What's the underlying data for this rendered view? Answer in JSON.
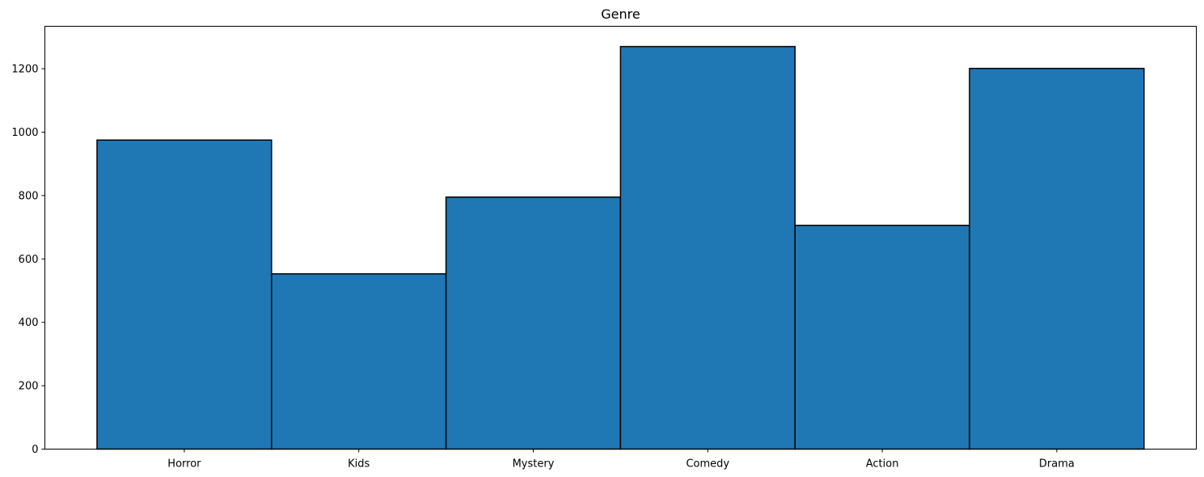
{
  "chart_data": {
    "type": "bar",
    "title": "Genre",
    "xlabel": "",
    "ylabel": "",
    "categories": [
      "Horror",
      "Kids",
      "Mystery",
      "Comedy",
      "Action",
      "Drama"
    ],
    "values": [
      975,
      553,
      795,
      1270,
      706,
      1201
    ],
    "ylim": [
      0,
      1334
    ],
    "yticks": [
      0,
      200,
      400,
      600,
      800,
      1000,
      1200
    ],
    "grid": false,
    "legend": "none",
    "bar_color": "#1f77b4",
    "edge_color": "#000000"
  }
}
